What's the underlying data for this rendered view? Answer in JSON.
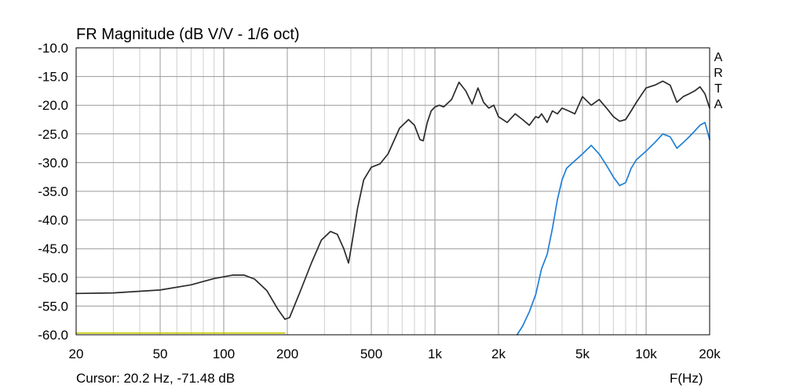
{
  "chart_data": {
    "type": "line",
    "title": "FR Magnitude (dB V/V - 1/6 oct)",
    "xlabel": "F(Hz)",
    "ylabel": "",
    "x_scale": "log",
    "xlim": [
      20,
      20000
    ],
    "ylim": [
      -60,
      -10
    ],
    "grid": true,
    "x_tick_labels": [
      {
        "v": 20,
        "label": "20"
      },
      {
        "v": 50,
        "label": "50"
      },
      {
        "v": 100,
        "label": "100"
      },
      {
        "v": 200,
        "label": "200"
      },
      {
        "v": 500,
        "label": "500"
      },
      {
        "v": 1000,
        "label": "1k"
      },
      {
        "v": 2000,
        "label": "2k"
      },
      {
        "v": 5000,
        "label": "5k"
      },
      {
        "v": 10000,
        "label": "10k"
      },
      {
        "v": 20000,
        "label": "20k"
      }
    ],
    "y_tick_labels": [
      {
        "v": -10,
        "label": "-10.0"
      },
      {
        "v": -15,
        "label": "-15.0"
      },
      {
        "v": -20,
        "label": "-20.0"
      },
      {
        "v": -25,
        "label": "-25.0"
      },
      {
        "v": -30,
        "label": "-30.0"
      },
      {
        "v": -35,
        "label": "-35.0"
      },
      {
        "v": -40,
        "label": "-40.0"
      },
      {
        "v": -45,
        "label": "-45.0"
      },
      {
        "v": -50,
        "label": "-50.0"
      },
      {
        "v": -55,
        "label": "-55.0"
      },
      {
        "v": -60,
        "label": "-60.0"
      }
    ],
    "side_label": [
      "A",
      "R",
      "T",
      "A"
    ],
    "cursor_text": "Cursor: 20.2 Hz, -71.48 dB",
    "series": [
      {
        "color": "#2b2b2b",
        "x": [
          20,
          30,
          50,
          70,
          90,
          110,
          125,
          140,
          160,
          180,
          195,
          205,
          230,
          260,
          290,
          320,
          345,
          370,
          390,
          405,
          430,
          460,
          500,
          550,
          600,
          680,
          750,
          800,
          850,
          880,
          920,
          960,
          1000,
          1050,
          1100,
          1200,
          1300,
          1400,
          1500,
          1600,
          1700,
          1800,
          1900,
          2000,
          2200,
          2400,
          2600,
          2800,
          3000,
          3100,
          3200,
          3400,
          3600,
          3800,
          4000,
          4300,
          4600,
          5000,
          5500,
          6000,
          6500,
          7000,
          7500,
          8000,
          8500,
          9000,
          10000,
          11000,
          12000,
          13000,
          14000,
          15000,
          16000,
          17000,
          18000,
          19000,
          20000
        ],
        "y": [
          -52.8,
          -52.7,
          -52.2,
          -51.3,
          -50.2,
          -49.6,
          -49.6,
          -50.3,
          -52.3,
          -55.5,
          -57.3,
          -57.0,
          -52.5,
          -47.5,
          -43.5,
          -42.0,
          -42.5,
          -45.0,
          -47.5,
          -44.0,
          -38.0,
          -33.0,
          -30.8,
          -30.2,
          -28.5,
          -24.0,
          -22.5,
          -23.5,
          -26.0,
          -26.2,
          -23.0,
          -21.0,
          -20.3,
          -20.0,
          -20.3,
          -19.0,
          -16.0,
          -17.5,
          -19.8,
          -17.0,
          -19.5,
          -20.5,
          -20.0,
          -22.0,
          -23.0,
          -21.5,
          -22.5,
          -23.5,
          -22.0,
          -22.2,
          -21.5,
          -23.0,
          -21.0,
          -21.5,
          -20.5,
          -21.0,
          -21.5,
          -18.5,
          -20.0,
          -19.0,
          -20.5,
          -22.0,
          -22.8,
          -22.5,
          -21.0,
          -19.5,
          -17.0,
          -16.5,
          -15.8,
          -16.5,
          -19.5,
          -18.5,
          -18.0,
          -17.5,
          -16.8,
          -18.0,
          -20.5
        ]
      },
      {
        "color": "#1f7fd6",
        "x": [
          2450,
          2600,
          2800,
          3000,
          3200,
          3400,
          3600,
          3800,
          4000,
          4200,
          4500,
          5000,
          5500,
          6000,
          6500,
          7000,
          7500,
          8000,
          8500,
          9000,
          10000,
          11000,
          12000,
          13000,
          14000,
          15000,
          16000,
          17000,
          18000,
          19000,
          20000
        ],
        "y": [
          -60.0,
          -58.5,
          -56.0,
          -53.0,
          -48.5,
          -46.0,
          -41.5,
          -36.5,
          -33.0,
          -31.0,
          -30.0,
          -28.5,
          -27.0,
          -28.5,
          -30.5,
          -32.5,
          -34.0,
          -33.5,
          -31.0,
          -29.5,
          -28.0,
          -26.5,
          -25.0,
          -25.5,
          -27.5,
          -26.5,
          -25.5,
          -24.5,
          -23.5,
          -23.0,
          -26.0
        ]
      },
      {
        "color": "#c8c800",
        "x": [
          20,
          195
        ],
        "y": [
          -59.7,
          -59.7
        ]
      }
    ]
  }
}
